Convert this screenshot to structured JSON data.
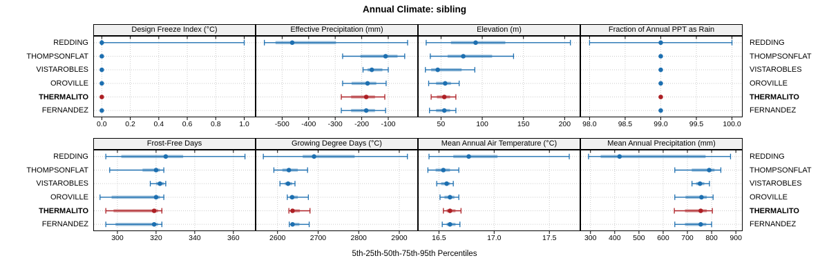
{
  "chart_data": {
    "type": "scatter",
    "variant": "percentile-dotplot-trellis",
    "title": "Annual Climate: sibling",
    "xlabel": "5th-25th-50th-75th-95th Percentiles",
    "grid": true,
    "legend_position": "none",
    "percentiles": [
      5,
      25,
      50,
      75,
      95
    ],
    "stations": [
      "REDDING",
      "THOMPSONFLAT",
      "VISTAROBLES",
      "OROVILLE",
      "THERMALITO",
      "FERNANDEZ"
    ],
    "highlight_station": "THERMALITO",
    "colors": {
      "normal": "#1d6fb0",
      "highlight": "#ad1f24",
      "header_bg": "#f0f0f0",
      "gridline": "#c9c9c9",
      "border": "#000000"
    },
    "panels": [
      {
        "title": "Design Freeze Index (°C)",
        "row": 0,
        "xlim": [
          -0.06,
          1.08
        ],
        "tick_values": [
          0.0,
          0.2,
          0.4,
          0.6,
          0.8,
          1.0
        ],
        "tick_labels": [
          "0.0",
          "0.2",
          "0.4",
          "0.6",
          "0.8",
          "1.0"
        ],
        "series": {
          "REDDING": [
            0,
            0,
            0,
            0,
            1.0
          ],
          "THOMPSONFLAT": [
            0,
            0,
            0,
            0,
            0
          ],
          "VISTAROBLES": [
            0,
            0,
            0,
            0,
            0
          ],
          "OROVILLE": [
            0,
            0,
            0,
            0,
            0
          ],
          "THERMALITO": [
            0,
            0,
            0,
            0,
            0
          ],
          "FERNANDEZ": [
            0,
            0,
            0,
            0,
            0
          ]
        }
      },
      {
        "title": "Effective Precipitation (mm)",
        "row": 0,
        "xlim": [
          -600,
          12
        ],
        "tick_values": [
          -500,
          -400,
          -300,
          -200,
          -100
        ],
        "tick_labels": [
          "-500",
          "-400",
          "-300",
          "-200",
          "-100"
        ],
        "series": {
          "REDDING": [
            -567,
            -525,
            -462,
            -297,
            -27
          ],
          "THOMPSONFLAT": [
            -272,
            -205,
            -110,
            -65,
            -38
          ],
          "VISTAROBLES": [
            -195,
            -178,
            -162,
            -122,
            -100
          ],
          "OROVILLE": [
            -272,
            -238,
            -178,
            -145,
            -108
          ],
          "THERMALITO": [
            -277,
            -240,
            -183,
            -150,
            -113
          ],
          "FERNANDEZ": [
            -277,
            -240,
            -183,
            -150,
            -110
          ]
        }
      },
      {
        "title": "Elevation (m)",
        "row": 0,
        "xlim": [
          22,
          219
        ],
        "tick_values": [
          50,
          100,
          150,
          200
        ],
        "tick_labels": [
          "50",
          "100",
          "150",
          "200"
        ],
        "series": {
          "REDDING": [
            32,
            62,
            92,
            128,
            207
          ],
          "THOMPSONFLAT": [
            37,
            58,
            77,
            112,
            138
          ],
          "VISTAROBLES": [
            31,
            38,
            46,
            75,
            91
          ],
          "OROVILLE": [
            35,
            44,
            55,
            62,
            72
          ],
          "THERMALITO": [
            38,
            45,
            54,
            61,
            68
          ],
          "FERNANDEZ": [
            36,
            44,
            54,
            61,
            68
          ]
        }
      },
      {
        "title": "Fraction of Annual PPT as Rain",
        "row": 0,
        "xlim": [
          97.87,
          100.15
        ],
        "tick_values": [
          98.0,
          98.5,
          99.0,
          99.5,
          100.0
        ],
        "tick_labels": [
          "98.0",
          "98.5",
          "99.0",
          "99.5",
          "100.0"
        ],
        "series": {
          "REDDING": [
            98.0,
            99.0,
            99.0,
            99.0,
            100.0
          ],
          "THOMPSONFLAT": [
            99.0,
            99.0,
            99.0,
            99.0,
            99.0
          ],
          "VISTAROBLES": [
            99.0,
            99.0,
            99.0,
            99.0,
            99.0
          ],
          "OROVILLE": [
            99.0,
            99.0,
            99.0,
            99.0,
            99.0
          ],
          "THERMALITO": [
            99.0,
            99.0,
            99.0,
            99.0,
            99.0
          ],
          "FERNANDEZ": [
            99.0,
            99.0,
            99.0,
            99.0,
            99.0
          ]
        }
      },
      {
        "title": "Frost-Free Days",
        "row": 1,
        "xlim": [
          287.5,
          371.5
        ],
        "tick_values": [
          300,
          320,
          340,
          360
        ],
        "tick_labels": [
          "300",
          "320",
          "340",
          "360"
        ],
        "series": {
          "REDDING": [
            294,
            302,
            325,
            334,
            366
          ],
          "THOMPSONFLAT": [
            296,
            313,
            320,
            322,
            324
          ],
          "VISTAROBLES": [
            317,
            320,
            322,
            324,
            325
          ],
          "OROVILLE": [
            291,
            297,
            320,
            322,
            324
          ],
          "THERMALITO": [
            294,
            298,
            319,
            321,
            323
          ],
          "FERNANDEZ": [
            294,
            299,
            319,
            321,
            323
          ]
        }
      },
      {
        "title": "Growing Degree Days (°C)",
        "row": 1,
        "xlim": [
          2546,
          2946
        ],
        "tick_values": [
          2600,
          2700,
          2800,
          2900
        ],
        "tick_labels": [
          "2600",
          "2700",
          "2800",
          "2900"
        ],
        "series": {
          "REDDING": [
            2565,
            2662,
            2690,
            2790,
            2920
          ],
          "THOMPSONFLAT": [
            2591,
            2612,
            2628,
            2650,
            2674
          ],
          "VISTAROBLES": [
            2606,
            2618,
            2626,
            2636,
            2643
          ],
          "OROVILLE": [
            2624,
            2630,
            2636,
            2650,
            2676
          ],
          "THERMALITO": [
            2628,
            2633,
            2637,
            2655,
            2680
          ],
          "FERNANDEZ": [
            2629,
            2634,
            2637,
            2654,
            2678
          ]
        }
      },
      {
        "title": "Mean Annual Air Temperature (°C)",
        "row": 1,
        "xlim": [
          16.31,
          17.78
        ],
        "tick_values": [
          16.5,
          17.0,
          17.5
        ],
        "tick_labels": [
          "16.5",
          "17.0",
          "17.5"
        ],
        "series": {
          "REDDING": [
            16.41,
            16.63,
            16.77,
            17.03,
            17.68
          ],
          "THOMPSONFLAT": [
            16.4,
            16.47,
            16.54,
            16.6,
            16.68
          ],
          "VISTAROBLES": [
            16.48,
            16.52,
            16.57,
            16.6,
            16.63
          ],
          "OROVILLE": [
            16.51,
            16.55,
            16.6,
            16.64,
            16.68
          ],
          "THERMALITO": [
            16.54,
            16.57,
            16.6,
            16.65,
            16.7
          ],
          "FERNANDEZ": [
            16.53,
            16.57,
            16.6,
            16.65,
            16.69
          ]
        }
      },
      {
        "title": "Mean Annual Precipitation (mm)",
        "row": 1,
        "xlim": [
          258,
          928
        ],
        "tick_values": [
          300,
          400,
          500,
          600,
          700,
          800,
          900
        ],
        "tick_labels": [
          "300",
          "400",
          "500",
          "600",
          "700",
          "800",
          "900"
        ],
        "series": {
          "REDDING": [
            292,
            342,
            420,
            775,
            878
          ],
          "THOMPSONFLAT": [
            648,
            718,
            790,
            812,
            838
          ],
          "VISTAROBLES": [
            719,
            736,
            752,
            770,
            791
          ],
          "OROVILLE": [
            648,
            692,
            758,
            780,
            806
          ],
          "THERMALITO": [
            646,
            690,
            755,
            780,
            803
          ],
          "FERNANDEZ": [
            648,
            690,
            755,
            778,
            800
          ]
        }
      }
    ]
  }
}
